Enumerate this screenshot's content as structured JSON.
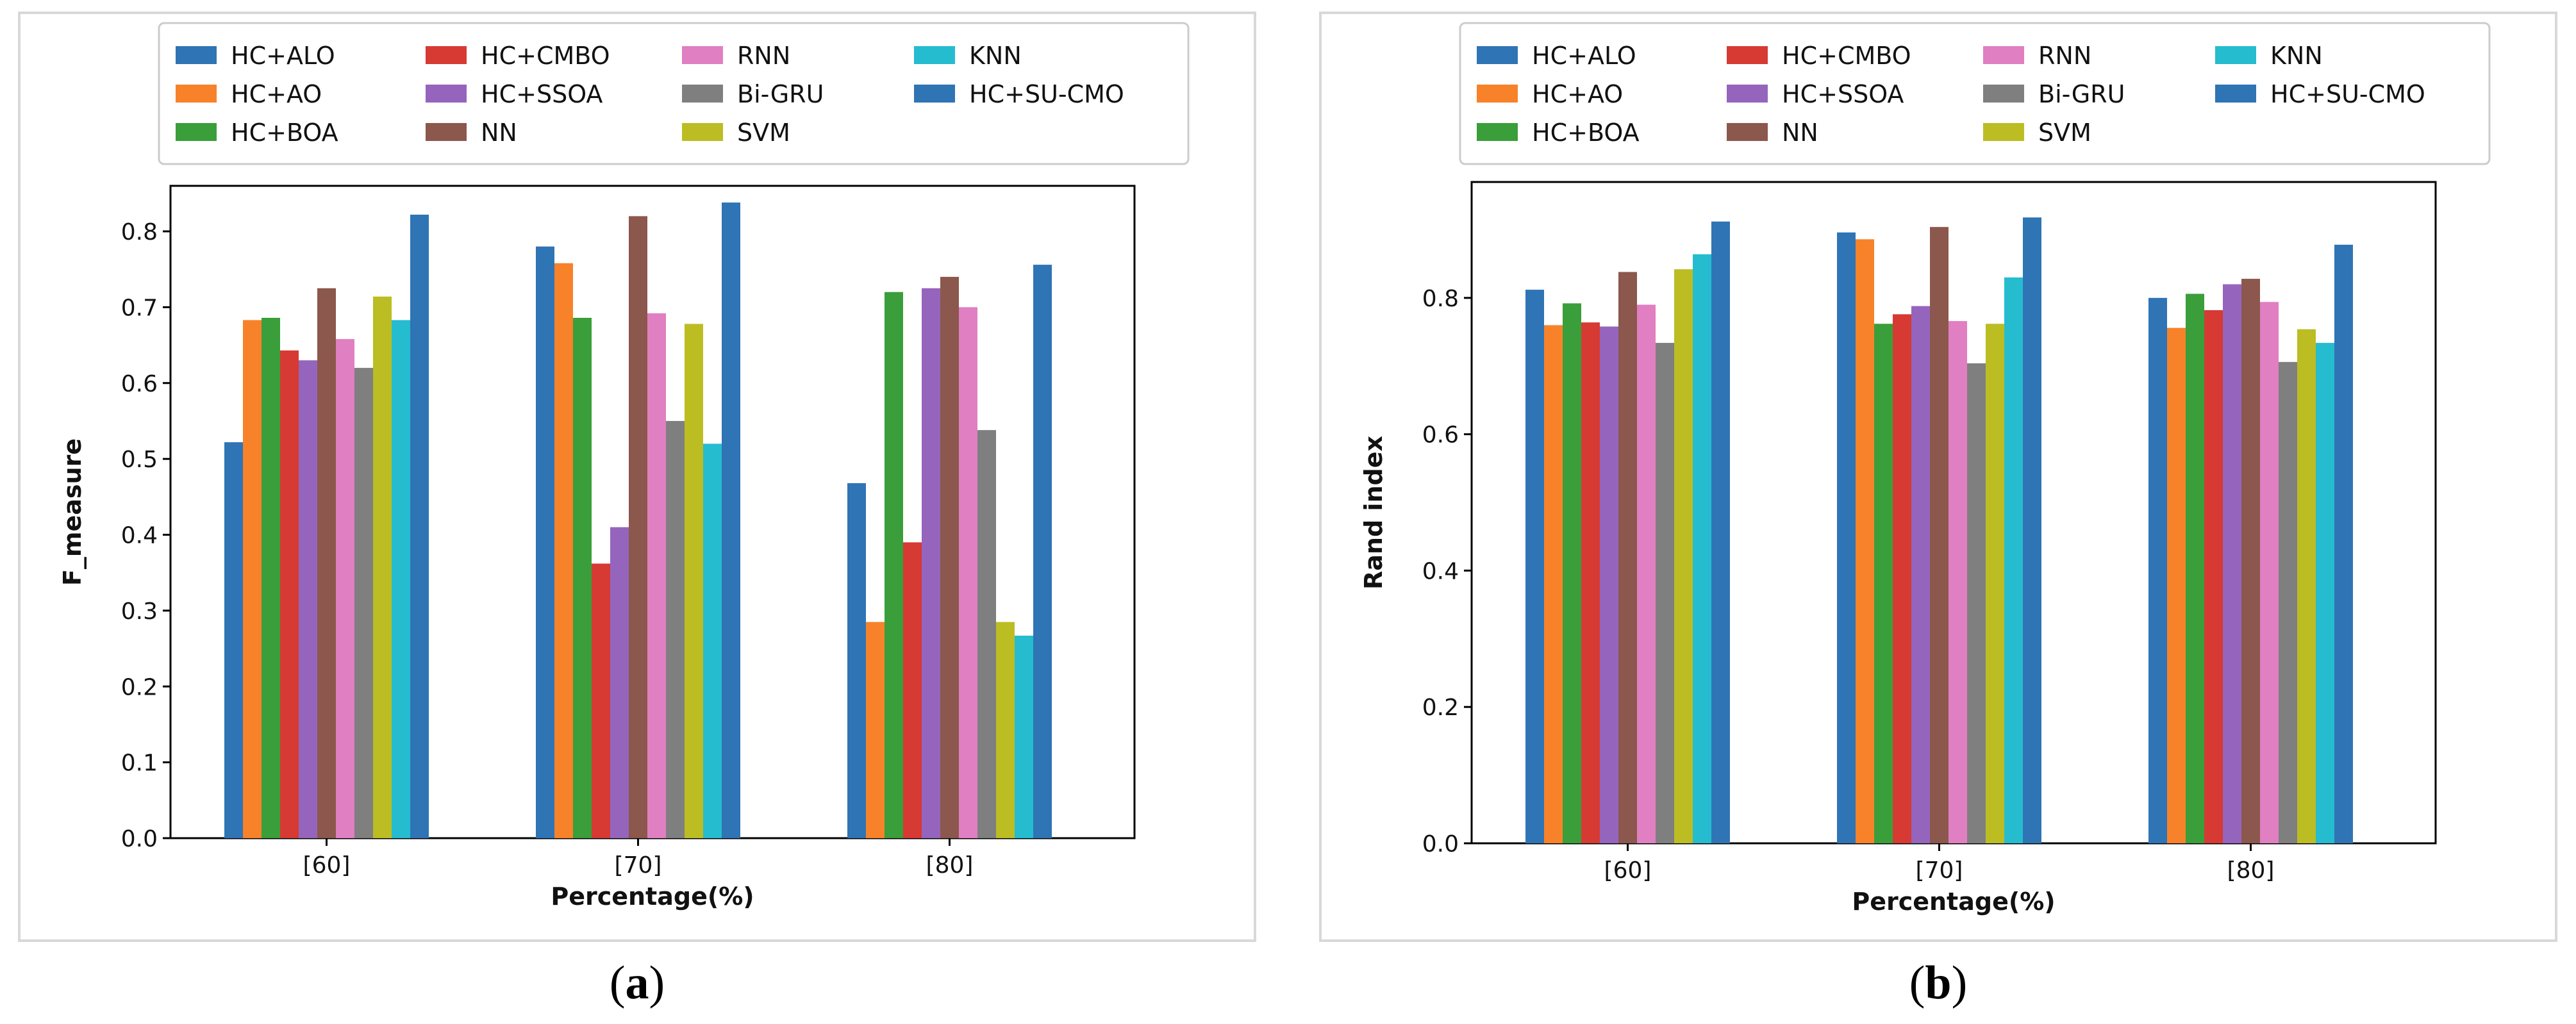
{
  "captions": {
    "a": "a",
    "b": "b"
  },
  "colors": {
    "HC+ALO": "#2f74b5",
    "HC+AO": "#f7822a",
    "HC+BOA": "#3a9e3a",
    "HC+CMBO": "#d63a33",
    "HC+SSOA": "#9565bd",
    "NN": "#8c574c",
    "RNN": "#e07fc2",
    "Bi-GRU": "#7f7f7f",
    "SVM": "#bcbd22",
    "KNN": "#25bccf",
    "HC+SU-CMO": "#2f74b5"
  },
  "chart_data": [
    {
      "id": "a",
      "type": "bar",
      "categories": [
        "[60]",
        "[70]",
        "[80]"
      ],
      "xlabel": "Percentage(%)",
      "ylabel": "F_measure",
      "ylim": [
        0,
        0.86
      ],
      "yticks": [
        "0.0",
        "0.1",
        "0.2",
        "0.3",
        "0.4",
        "0.5",
        "0.6",
        "0.7",
        "0.8"
      ],
      "legend_placement": "top",
      "series": [
        {
          "name": "HC+ALO",
          "values": [
            0.522,
            0.78,
            0.468
          ]
        },
        {
          "name": "HC+AO",
          "values": [
            0.683,
            0.758,
            0.285
          ]
        },
        {
          "name": "HC+BOA",
          "values": [
            0.686,
            0.686,
            0.72
          ]
        },
        {
          "name": "HC+CMBO",
          "values": [
            0.643,
            0.362,
            0.39
          ]
        },
        {
          "name": "HC+SSOA",
          "values": [
            0.63,
            0.41,
            0.725
          ]
        },
        {
          "name": "NN",
          "values": [
            0.725,
            0.82,
            0.74
          ]
        },
        {
          "name": "RNN",
          "values": [
            0.658,
            0.692,
            0.7
          ]
        },
        {
          "name": "Bi-GRU",
          "values": [
            0.62,
            0.55,
            0.538
          ]
        },
        {
          "name": "SVM",
          "values": [
            0.714,
            0.678,
            0.285
          ]
        },
        {
          "name": "KNN",
          "values": [
            0.683,
            0.52,
            0.267
          ]
        },
        {
          "name": "HC+SU-CMO",
          "values": [
            0.822,
            0.838,
            0.756
          ]
        }
      ]
    },
    {
      "id": "b",
      "type": "bar",
      "categories": [
        "[60]",
        "[70]",
        "[80]"
      ],
      "xlabel": "Percentage(%)",
      "ylabel": "Rand index",
      "ylim": [
        0,
        0.97
      ],
      "yticks": [
        "0.0",
        "0.2",
        "0.4",
        "0.6",
        "0.8"
      ],
      "legend_placement": "top",
      "series": [
        {
          "name": "HC+ALO",
          "values": [
            0.812,
            0.896,
            0.8
          ]
        },
        {
          "name": "HC+AO",
          "values": [
            0.76,
            0.886,
            0.756
          ]
        },
        {
          "name": "HC+BOA",
          "values": [
            0.792,
            0.762,
            0.806
          ]
        },
        {
          "name": "HC+CMBO",
          "values": [
            0.764,
            0.776,
            0.782
          ]
        },
        {
          "name": "HC+SSOA",
          "values": [
            0.758,
            0.788,
            0.82
          ]
        },
        {
          "name": "NN",
          "values": [
            0.838,
            0.904,
            0.828
          ]
        },
        {
          "name": "RNN",
          "values": [
            0.79,
            0.766,
            0.794
          ]
        },
        {
          "name": "Bi-GRU",
          "values": [
            0.734,
            0.704,
            0.706
          ]
        },
        {
          "name": "SVM",
          "values": [
            0.842,
            0.762,
            0.754
          ]
        },
        {
          "name": "KNN",
          "values": [
            0.864,
            0.83,
            0.734
          ]
        },
        {
          "name": "HC+SU-CMO",
          "values": [
            0.912,
            0.918,
            0.878
          ]
        }
      ]
    }
  ]
}
